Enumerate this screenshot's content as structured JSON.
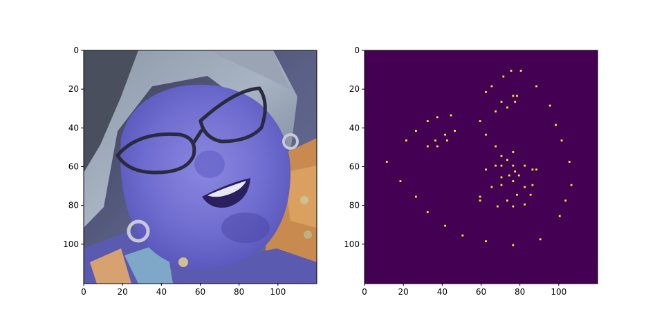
{
  "chart_data": [
    {
      "type": "image",
      "content": "photo-face",
      "xlim": [
        0,
        120
      ],
      "ylim": [
        120,
        0
      ],
      "x_ticks": [
        0,
        20,
        40,
        60,
        80,
        100
      ],
      "y_ticks": [
        0,
        20,
        40,
        60,
        80,
        100
      ],
      "x_tick_labels": [
        "0",
        "20",
        "40",
        "60",
        "80",
        "100"
      ],
      "y_tick_labels": [
        "0",
        "20",
        "40",
        "60",
        "80",
        "100"
      ]
    },
    {
      "type": "heatmap",
      "colormap": "viridis",
      "background_color": "#440154",
      "point_color": "#fde725",
      "xlim": [
        0,
        120
      ],
      "ylim": [
        120,
        0
      ],
      "x_ticks": [
        0,
        20,
        40,
        60,
        80,
        100
      ],
      "y_ticks": [
        0,
        20,
        40,
        60,
        80,
        100
      ],
      "x_tick_labels": [
        "0",
        "20",
        "40",
        "60",
        "80",
        "100"
      ],
      "y_tick_labels": [
        "0",
        "20",
        "40",
        "60",
        "80",
        "100"
      ],
      "points": [
        [
          75,
          10
        ],
        [
          80,
          10
        ],
        [
          71,
          13
        ],
        [
          65,
          18
        ],
        [
          88,
          18
        ],
        [
          62,
          21
        ],
        [
          76,
          23
        ],
        [
          78,
          23
        ],
        [
          70,
          26
        ],
        [
          77,
          26
        ],
        [
          73,
          29
        ],
        [
          67,
          31
        ],
        [
          95,
          28
        ],
        [
          44,
          33
        ],
        [
          37,
          34
        ],
        [
          32,
          36
        ],
        [
          59,
          36
        ],
        [
          98,
          38
        ],
        [
          46,
          41
        ],
        [
          26,
          41
        ],
        [
          62,
          43
        ],
        [
          41,
          43
        ],
        [
          21,
          46
        ],
        [
          36,
          46
        ],
        [
          42,
          46
        ],
        [
          101,
          46
        ],
        [
          32,
          49
        ],
        [
          37,
          49
        ],
        [
          67,
          49
        ],
        [
          76,
          52
        ],
        [
          70,
          54
        ],
        [
          73,
          56
        ],
        [
          11,
          57
        ],
        [
          105,
          57
        ],
        [
          67,
          59
        ],
        [
          70,
          59
        ],
        [
          76,
          59
        ],
        [
          82,
          59
        ],
        [
          62,
          61
        ],
        [
          77,
          62
        ],
        [
          86,
          61
        ],
        [
          88,
          61
        ],
        [
          79,
          64
        ],
        [
          70,
          65
        ],
        [
          74,
          64
        ],
        [
          18,
          67
        ],
        [
          76,
          67
        ],
        [
          70,
          69
        ],
        [
          65,
          70
        ],
        [
          82,
          70
        ],
        [
          86,
          69
        ],
        [
          106,
          69
        ],
        [
          85,
          74
        ],
        [
          59,
          75
        ],
        [
          78,
          74
        ],
        [
          26,
          75
        ],
        [
          59,
          77
        ],
        [
          73,
          77
        ],
        [
          103,
          77
        ],
        [
          68,
          80
        ],
        [
          76,
          80
        ],
        [
          82,
          79
        ],
        [
          32,
          83
        ],
        [
          100,
          85
        ],
        [
          41,
          90
        ],
        [
          50,
          95
        ],
        [
          90,
          97
        ],
        [
          62,
          98
        ],
        [
          76,
          100
        ]
      ]
    }
  ]
}
